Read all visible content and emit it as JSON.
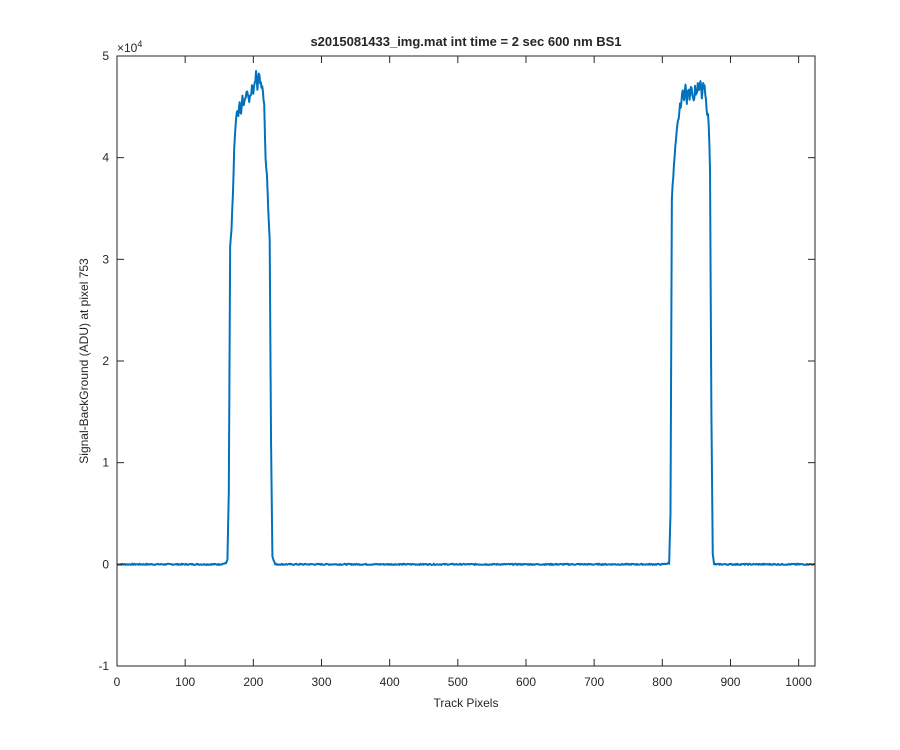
{
  "chart_data": {
    "type": "line",
    "title": "s2015081433_img.mat int time = 2 sec  600 nm BS1",
    "xlabel": "Track Pixels",
    "ylabel": "Signal-BackGround (ADU) at pixel 753",
    "xlim": [
      0,
      1024
    ],
    "ylim": [
      -10000,
      50000
    ],
    "y_exponent_label": "×10",
    "y_exponent_power": "4",
    "x_ticks": [
      0,
      100,
      200,
      300,
      400,
      500,
      600,
      700,
      800,
      900,
      1000
    ],
    "x_tick_labels": [
      "0",
      "100",
      "200",
      "300",
      "400",
      "500",
      "600",
      "700",
      "800",
      "900",
      "1000"
    ],
    "y_ticks": [
      -10000,
      0,
      10000,
      20000,
      30000,
      40000,
      50000
    ],
    "y_tick_labels": [
      "-1",
      "0",
      "1",
      "2",
      "3",
      "4",
      "5"
    ],
    "grid": false,
    "line_color": "#0072BD",
    "series": [
      {
        "x": [
          0,
          50,
          100,
          150,
          160,
          162,
          164,
          166,
          168,
          170,
          172,
          174,
          176,
          178,
          180,
          182,
          184,
          186,
          188,
          190,
          192,
          194,
          196,
          198,
          200,
          202,
          204,
          206,
          208,
          210,
          212,
          214,
          216,
          218,
          220,
          222,
          224,
          226,
          228,
          232,
          250,
          300,
          400,
          500,
          600,
          700,
          800,
          810,
          812,
          814,
          816,
          818,
          820,
          822,
          824,
          826,
          828,
          830,
          832,
          834,
          836,
          838,
          840,
          842,
          844,
          846,
          848,
          850,
          852,
          854,
          856,
          858,
          860,
          862,
          864,
          866,
          868,
          870,
          872,
          874,
          876,
          878,
          880,
          900,
          950,
          1000,
          1023
        ],
        "y": [
          0,
          0,
          0,
          0,
          100,
          500,
          7000,
          31000,
          33000,
          36000,
          41000,
          43000,
          44500,
          44000,
          45500,
          44000,
          46000,
          45000,
          45800,
          46200,
          46500,
          45500,
          46000,
          47000,
          46500,
          47500,
          48200,
          47000,
          48500,
          47500,
          47000,
          46500,
          45000,
          40000,
          38000,
          35000,
          32000,
          12000,
          800,
          0,
          0,
          0,
          0,
          0,
          0,
          0,
          0,
          100,
          5000,
          36000,
          38000,
          40000,
          41500,
          43000,
          44000,
          45000,
          45500,
          46500,
          46000,
          47000,
          45500,
          46800,
          46000,
          47200,
          46500,
          45500,
          46800,
          46200,
          47000,
          46500,
          47500,
          46000,
          47000,
          46800,
          45500,
          44500,
          43500,
          39000,
          15000,
          1000,
          0,
          0,
          0,
          0,
          0,
          0,
          0
        ]
      }
    ]
  }
}
